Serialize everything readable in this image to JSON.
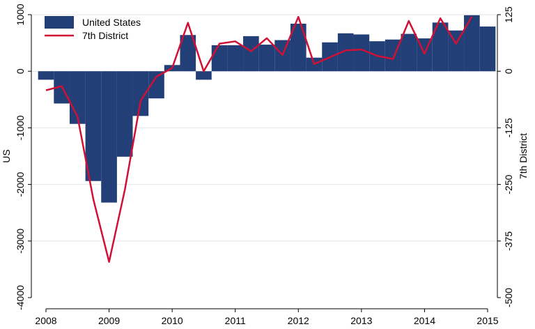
{
  "chart_data": {
    "type": "bar",
    "x": [
      2008.0,
      2008.25,
      2008.5,
      2008.75,
      2009.0,
      2009.25,
      2009.5,
      2009.75,
      2010.0,
      2010.25,
      2010.5,
      2010.75,
      2011.0,
      2011.25,
      2011.5,
      2011.75,
      2012.0,
      2012.25,
      2012.5,
      2012.75,
      2013.0,
      2013.25,
      2013.5,
      2013.75,
      2014.0,
      2014.25,
      2014.5,
      2014.75,
      2015.0
    ],
    "series": [
      {
        "name": "United States",
        "type": "bar",
        "axis": "left",
        "color": "#233f78",
        "values": [
          -150,
          -570,
          -930,
          -1940,
          -2320,
          -1510,
          -790,
          -480,
          110,
          640,
          -150,
          460,
          460,
          620,
          470,
          550,
          840,
          240,
          510,
          670,
          650,
          530,
          560,
          660,
          580,
          860,
          720,
          990,
          790
        ]
      },
      {
        "name": "7th District",
        "type": "line",
        "axis": "right",
        "color": "#d01136",
        "values": [
          -42,
          -33,
          -100,
          -282,
          -421,
          -262,
          -65,
          -12,
          7,
          107,
          0,
          61,
          66,
          44,
          73,
          36,
          120,
          16,
          31,
          46,
          48,
          34,
          27,
          111,
          39,
          117,
          61,
          121,
          null
        ]
      }
    ],
    "xlabel": "",
    "ylabel": "US",
    "y2label": "7th District",
    "xlim": [
      2008,
      2015
    ],
    "ylim": [
      -4000,
      1000
    ],
    "y2lim": [
      -500,
      125
    ],
    "xticks": [
      2008,
      2009,
      2010,
      2011,
      2012,
      2013,
      2014,
      2015
    ],
    "yticks": [
      1000,
      0,
      -1000,
      -2000,
      -3000,
      -4000
    ],
    "y2ticks": [
      125,
      0,
      -125,
      -250,
      -375,
      -500
    ],
    "grid": true,
    "legend": "top-left"
  }
}
